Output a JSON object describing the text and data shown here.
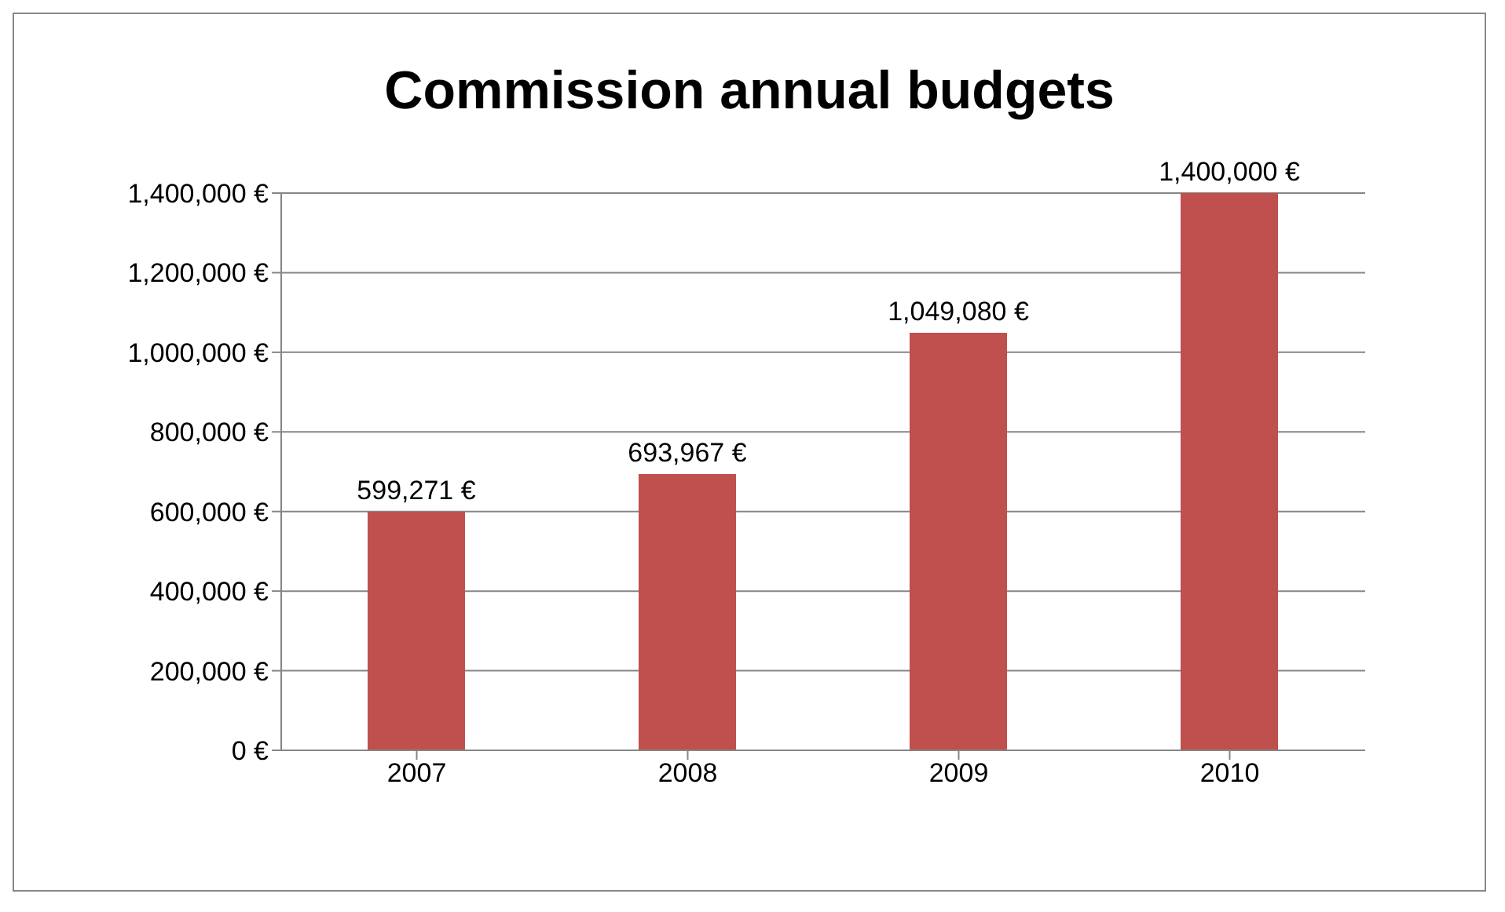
{
  "chart_data": {
    "type": "bar",
    "title": "Commission annual budgets",
    "categories": [
      "2007",
      "2008",
      "2009",
      "2010"
    ],
    "values": [
      599271,
      693967,
      1049080,
      1400000
    ],
    "value_labels": [
      "599,271 €",
      "693,967 €",
      "1,049,080 €",
      "1,400,000 €"
    ],
    "color": "#c0504d",
    "ylim": [
      0,
      1400000
    ],
    "yticks": [
      {
        "value": 0,
        "label": "0 €"
      },
      {
        "value": 200000,
        "label": "200,000 €"
      },
      {
        "value": 400000,
        "label": "400,000 €"
      },
      {
        "value": 600000,
        "label": "600,000 €"
      },
      {
        "value": 800000,
        "label": "800,000 €"
      },
      {
        "value": 1000000,
        "label": "1,000,000 €"
      },
      {
        "value": 1200000,
        "label": "1,200,000 €"
      },
      {
        "value": 1400000,
        "label": "1,400,000 €"
      }
    ],
    "grid": "y",
    "legend": false
  }
}
